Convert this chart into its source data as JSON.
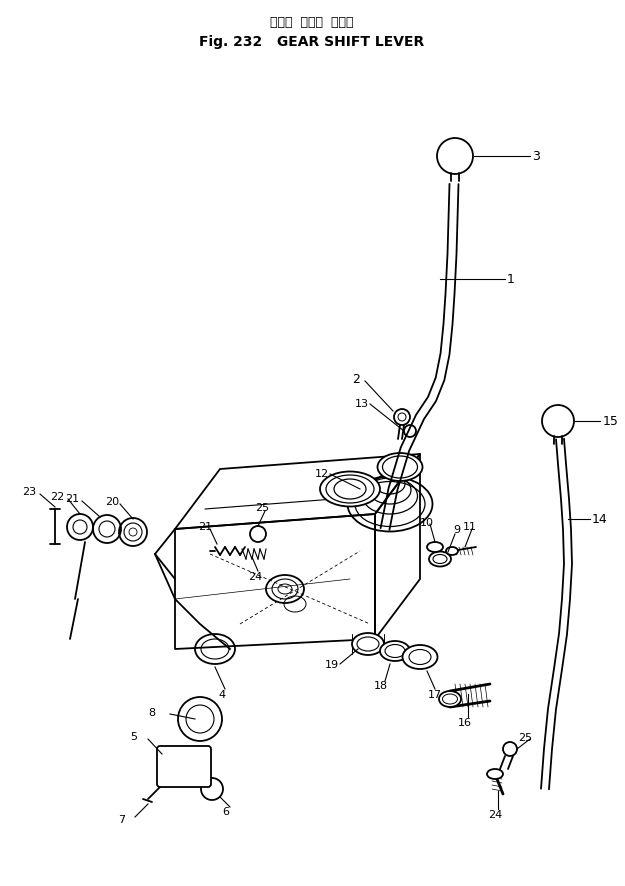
{
  "title_japanese": "ギヤー  シフト  レバー",
  "title_line2": "Fig. 232   GEAR SHIFT LEVER",
  "bg_color": "#ffffff",
  "line_color": "#000000",
  "fig_width": 6.25,
  "fig_height": 8.87,
  "dpi": 100
}
